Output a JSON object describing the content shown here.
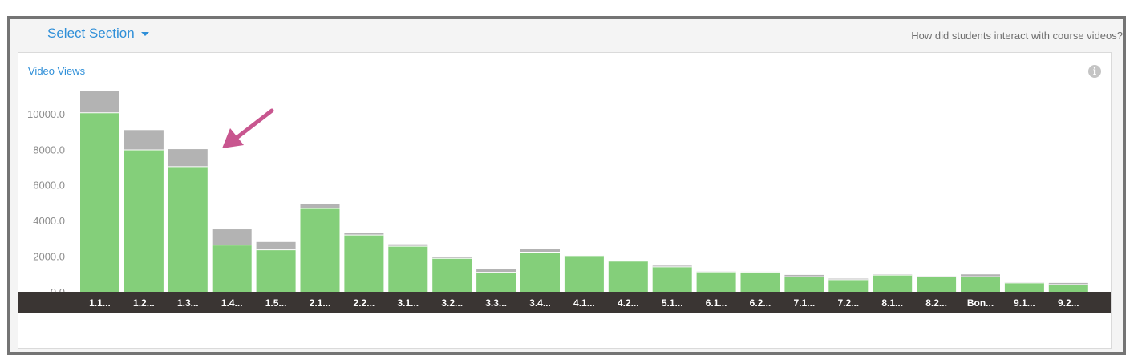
{
  "header": {
    "section_select_label": "Select Section",
    "question": "How did students interact with course videos?"
  },
  "panel": {
    "title": "Video Views"
  },
  "icons": {
    "section_caret": "caret-down-icon",
    "info": "info-icon",
    "annotation": "arrow-annotation"
  },
  "colors": {
    "primary_series": "#84cf7a",
    "secondary_series": "#b3b3b3",
    "axis_bar": "#3a3533",
    "link": "#2f8fd8",
    "annotation_arrow": "#c8568f"
  },
  "chart_data": {
    "type": "bar",
    "stacked": true,
    "title": "Video Views",
    "xlabel": "",
    "ylabel": "",
    "ylim": [
      0,
      11300
    ],
    "y_ticks": [
      "0.0",
      "2000.0",
      "4000.0",
      "6000.0",
      "8000.0",
      "10000.0"
    ],
    "grid": false,
    "categories": [
      "1.1...",
      "1.2...",
      "1.3...",
      "1.4...",
      "1.5...",
      "2.1...",
      "2.2...",
      "3.1...",
      "3.2...",
      "3.3...",
      "3.4...",
      "4.1...",
      "4.2...",
      "5.1...",
      "6.1...",
      "6.2...",
      "7.1...",
      "7.2...",
      "8.1...",
      "8.2...",
      "Bon...",
      "9.1...",
      "9.2..."
    ],
    "series": [
      {
        "values": [
          10050,
          7970,
          7030,
          2630,
          2360,
          4680,
          3190,
          2560,
          1880,
          1100,
          2230,
          2030,
          1720,
          1400,
          1120,
          1110,
          850,
          680,
          940,
          860,
          850,
          500,
          410
        ]
      },
      {
        "values": [
          1250,
          1110,
          980,
          880,
          440,
          240,
          140,
          110,
          90,
          160,
          170,
          20,
          10,
          70,
          30,
          20,
          100,
          60,
          40,
          30,
          130,
          30,
          90
        ]
      }
    ]
  }
}
